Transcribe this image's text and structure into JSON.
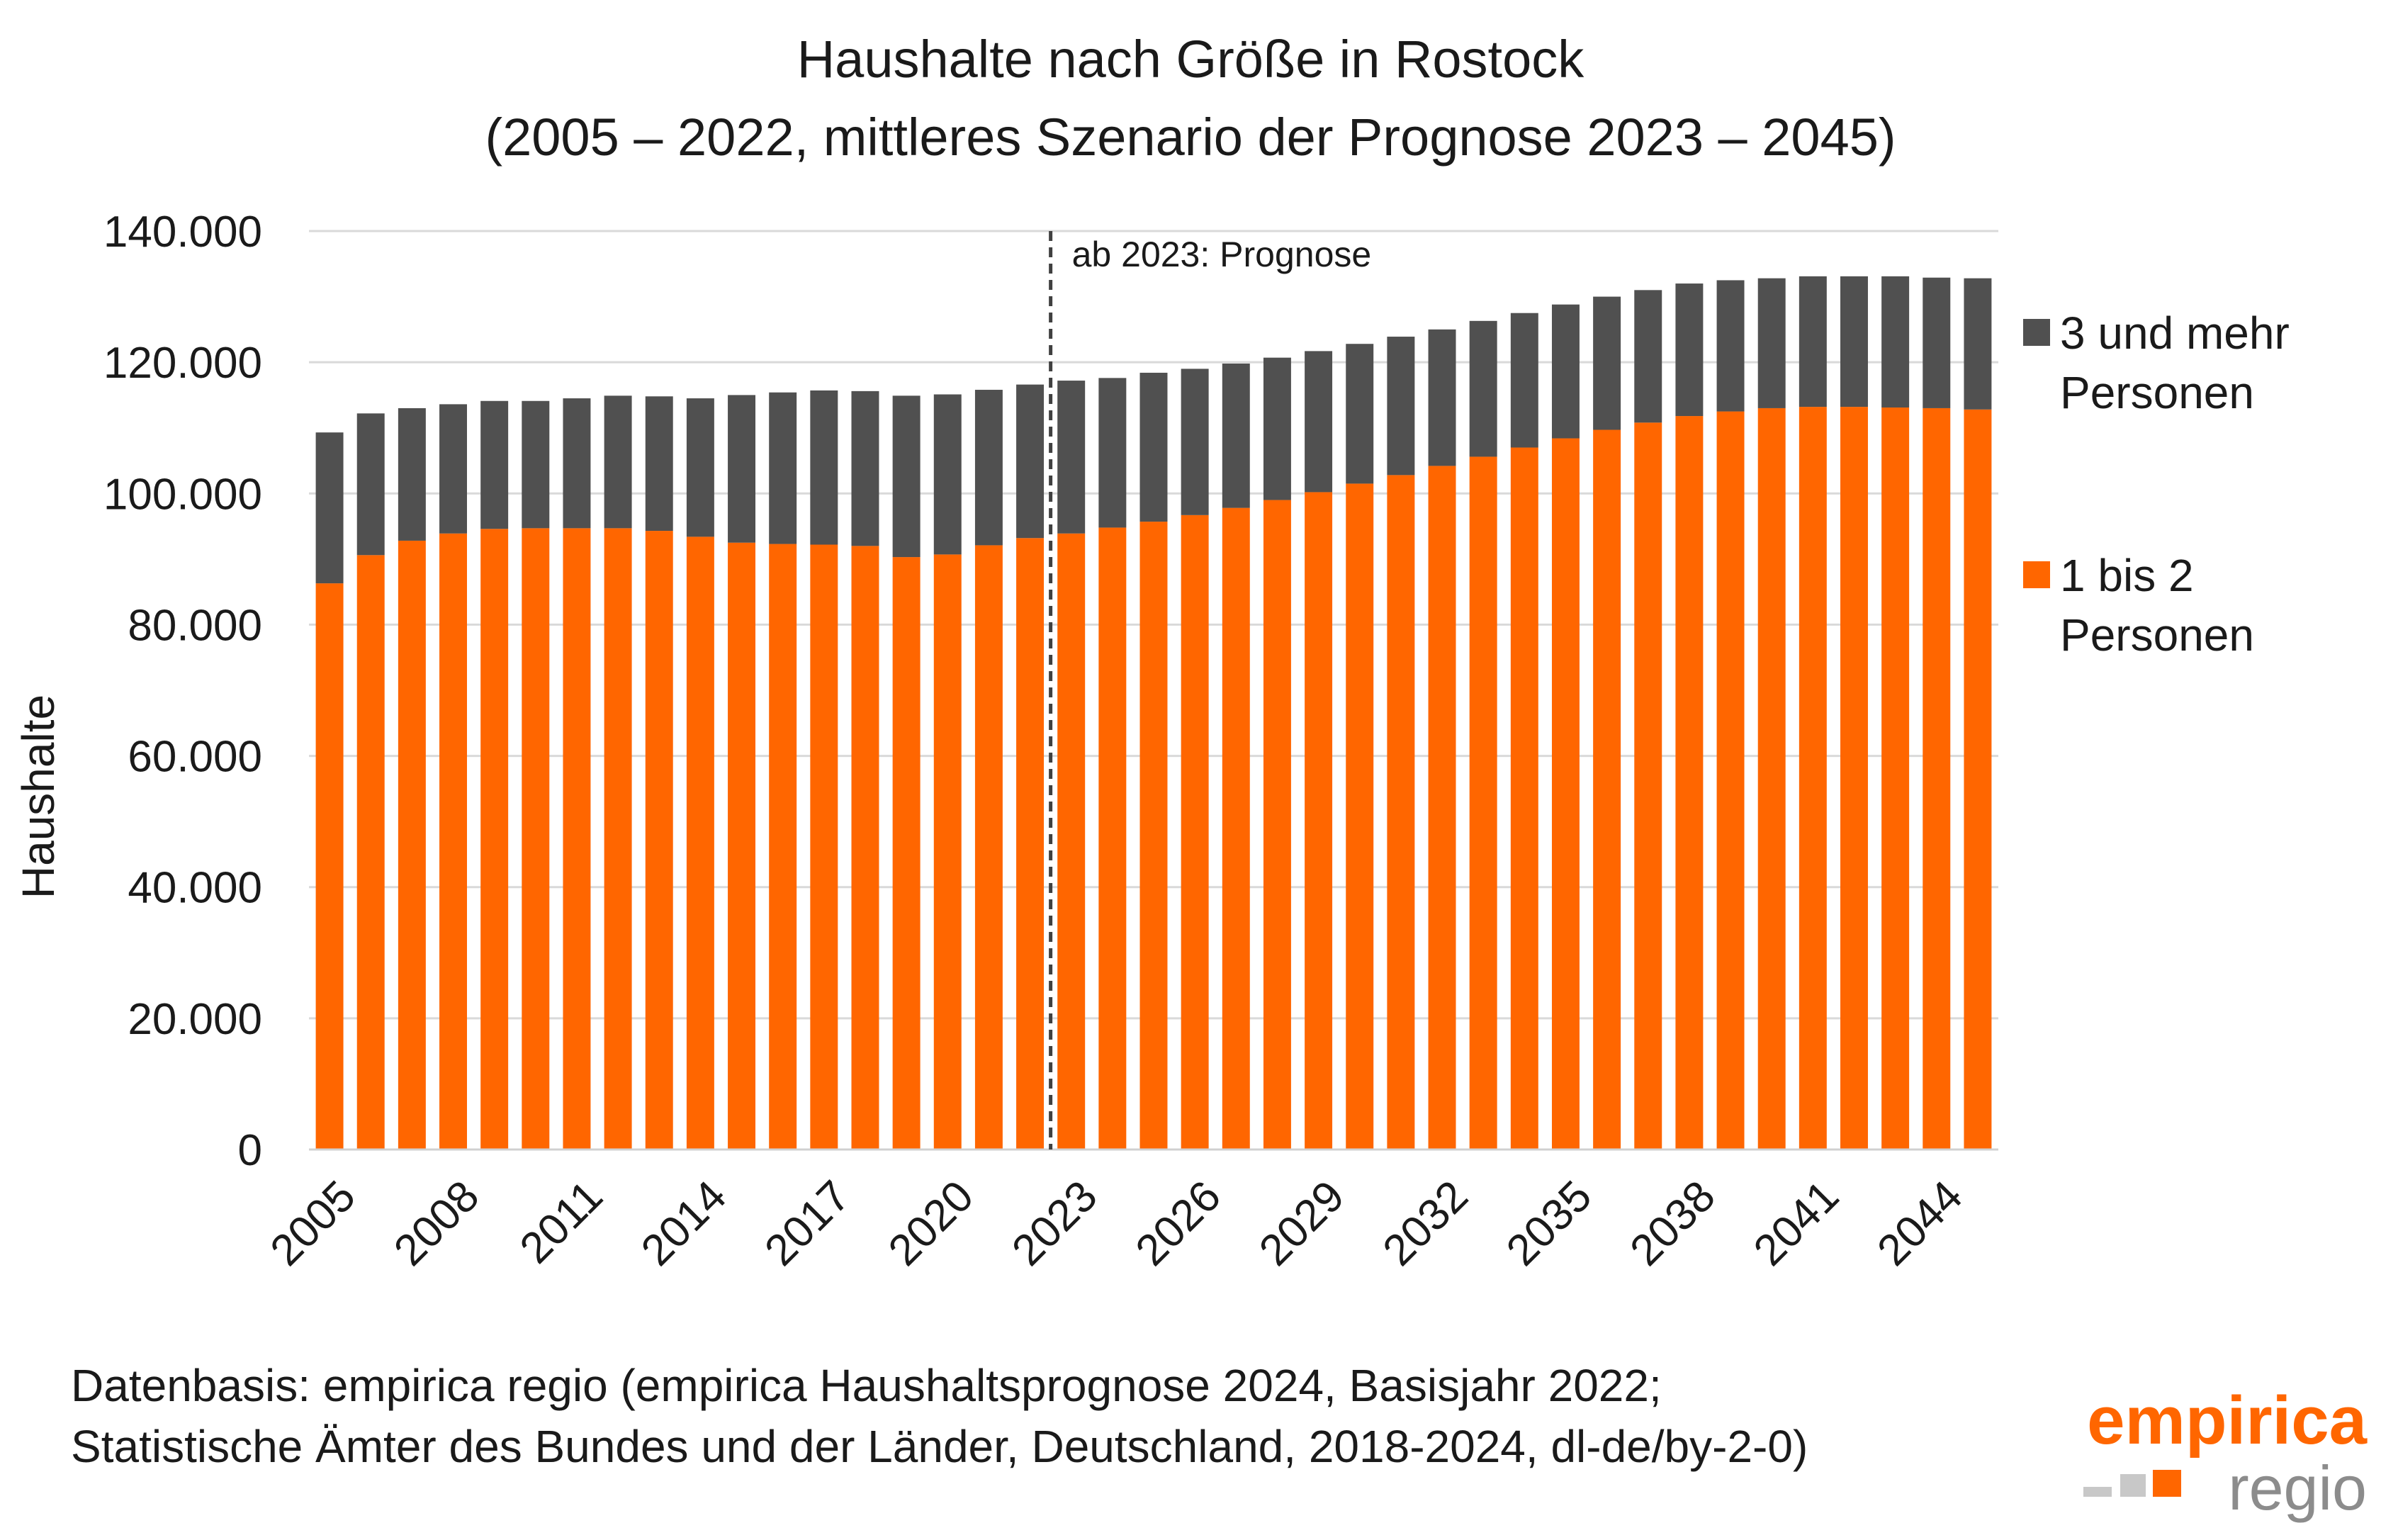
{
  "title_line1": "Haushalte nach Größe in Rostock",
  "title_line2": "(2005 – 2022, mittleres Szenario der Prognose 2023 – 2045)",
  "source": "Datenbasis: empirica regio (empirica Haushaltsprognose 2024, Basisjahr 2022; Statistische Ämter des Bundes und der Länder, Deutschland, 2018-2024, dl-de/by-2-0)",
  "logo": {
    "word": "empirica",
    "sub": "regio"
  },
  "colors": {
    "small_households": "#ff6600",
    "large_households": "#505050",
    "grid": "#d9d9d9",
    "divider": "#404040"
  },
  "chart_data": {
    "type": "bar",
    "stacked": true,
    "title": "Haushalte nach Größe in Rostock (2005 – 2022, mittleres Szenario der Prognose 2023 – 2045)",
    "ylabel": "Haushalte",
    "xlabel": "",
    "ylim": [
      0,
      140000
    ],
    "y_ticks": [
      0,
      20000,
      40000,
      60000,
      80000,
      100000,
      120000,
      140000
    ],
    "y_tick_labels": [
      "0",
      "20.000",
      "40.000",
      "60.000",
      "80.000",
      "100.000",
      "120.000",
      "140.000"
    ],
    "grid": true,
    "legend_position": "right",
    "annotation": {
      "text": "ab 2023: Prognose",
      "between": [
        2022,
        2023
      ]
    },
    "categories": [
      2005,
      2006,
      2007,
      2008,
      2009,
      2010,
      2011,
      2012,
      2013,
      2014,
      2015,
      2016,
      2017,
      2018,
      2019,
      2020,
      2021,
      2022,
      2023,
      2024,
      2025,
      2026,
      2027,
      2028,
      2029,
      2030,
      2031,
      2032,
      2033,
      2034,
      2035,
      2036,
      2037,
      2038,
      2039,
      2040,
      2041,
      2042,
      2043,
      2044,
      2045
    ],
    "x_tick_labels": [
      "2005",
      "2008",
      "2011",
      "2014",
      "2017",
      "2020",
      "2023",
      "2026",
      "2029",
      "2032",
      "2035",
      "2038",
      "2041",
      "2044"
    ],
    "series": [
      {
        "name": "1 bis 2 Personen",
        "color": "#ff6600",
        "values": [
          86300,
          90600,
          92800,
          93900,
          94600,
          94700,
          94700,
          94700,
          94300,
          93400,
          92500,
          92300,
          92200,
          92000,
          90300,
          90700,
          92100,
          93200,
          93900,
          94800,
          95700,
          96700,
          97800,
          99000,
          100200,
          101500,
          102800,
          104200,
          105600,
          107000,
          108400,
          109700,
          110800,
          111800,
          112500,
          113000,
          113200,
          113200,
          113100,
          113000,
          112800
        ]
      },
      {
        "name": "3 und mehr Personen",
        "color": "#505050",
        "values": [
          23000,
          21600,
          20200,
          19700,
          19500,
          19400,
          19800,
          20200,
          20500,
          21100,
          22500,
          23100,
          23500,
          23600,
          24600,
          24400,
          23700,
          23400,
          23300,
          22800,
          22700,
          22300,
          22000,
          21700,
          21500,
          21300,
          21100,
          20800,
          20700,
          20500,
          20400,
          20300,
          20200,
          20200,
          20000,
          19800,
          19900,
          19900,
          20000,
          19900,
          20000
        ]
      }
    ]
  }
}
